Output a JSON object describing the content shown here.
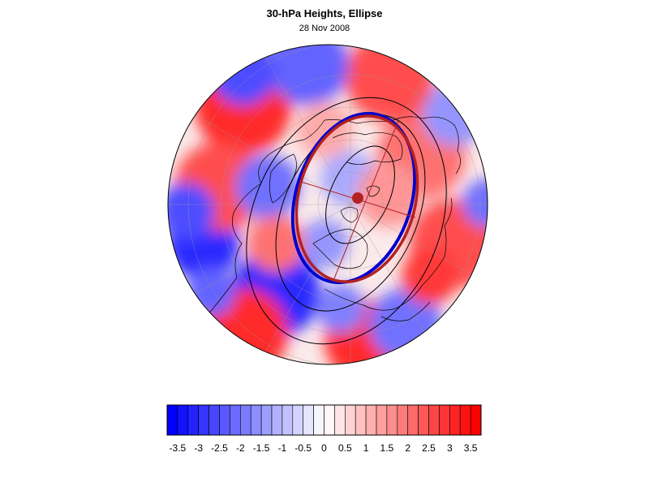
{
  "title": "30-hPa Heights, Ellipse",
  "subtitle": "28 Nov 2008",
  "colors": {
    "positive": "#ff0000",
    "negative": "#0000ff",
    "ellipse_fit": "#b22222",
    "vortex_edge": "#0000cd",
    "height_contours": "#000000"
  },
  "colorbar": {
    "min": -3.75,
    "max": 3.75,
    "interval": 0.25,
    "tick_labels": [
      "-3.5",
      "-3",
      "-2.5",
      "-2",
      "-1.5",
      "-1",
      "-0.5",
      "0",
      "0.5",
      "1",
      "1.5",
      "2",
      "2.5",
      "3",
      "3.5"
    ],
    "tick_values": [
      -3.5,
      -3,
      -2.5,
      -2,
      -1.5,
      -1,
      -0.5,
      0,
      0.5,
      1,
      1.5,
      2,
      2.5,
      3,
      3.5
    ]
  }
}
